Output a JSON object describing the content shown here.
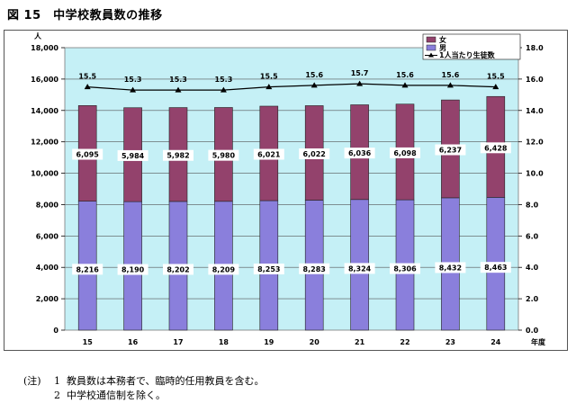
{
  "figure_title": "図 15　中学校教員数の推移",
  "notes": {
    "lead": "(注)",
    "items": [
      {
        "num": "1",
        "text": "教員数は本務者で、臨時的任用教員を含む。"
      },
      {
        "num": "2",
        "text": "中学校通信制を除く。"
      }
    ]
  },
  "colors": {
    "plot_bg": "#c5f0f6",
    "male": "#8a7fdc",
    "female": "#93426c",
    "line": "#000000"
  },
  "chart_data": {
    "type": "bar",
    "stacked": true,
    "categories": [
      "15",
      "16",
      "17",
      "18",
      "19",
      "20",
      "21",
      "22",
      "23",
      "24"
    ],
    "xlabel_right": "年度",
    "ylabel_left": "人",
    "ylim_left": [
      0,
      18000
    ],
    "yticks_left": [
      "0",
      "2,000",
      "4,000",
      "6,000",
      "8,000",
      "10,000",
      "12,000",
      "14,000",
      "16,000",
      "18,000"
    ],
    "ylim_right": [
      0,
      18
    ],
    "yticks_right": [
      "0.0",
      "2.0",
      "4.0",
      "6.0",
      "8.0",
      "10.0",
      "12.0",
      "14.0",
      "16.0",
      "18.0"
    ],
    "series": [
      {
        "name": "男",
        "values": [
          8216,
          8190,
          8202,
          8209,
          8253,
          8283,
          8324,
          8306,
          8432,
          8463
        ],
        "labels": [
          "8,216",
          "8,190",
          "8,202",
          "8,209",
          "8,253",
          "8,283",
          "8,324",
          "8,306",
          "8,432",
          "8,463"
        ]
      },
      {
        "name": "女",
        "values": [
          6095,
          5984,
          5982,
          5980,
          6021,
          6022,
          6036,
          6098,
          6237,
          6428
        ],
        "labels": [
          "6,095",
          "5,984",
          "5,982",
          "5,980",
          "6,021",
          "6,022",
          "6,036",
          "6,098",
          "6,237",
          "6,428"
        ]
      },
      {
        "name": "1人当たり生徒数",
        "type": "line",
        "axis": "right",
        "values": [
          15.5,
          15.3,
          15.3,
          15.3,
          15.5,
          15.6,
          15.7,
          15.6,
          15.6,
          15.5
        ],
        "labels": [
          "15.5",
          "15.3",
          "15.3",
          "15.3",
          "15.5",
          "15.6",
          "15.7",
          "15.6",
          "15.6",
          "15.5"
        ]
      }
    ],
    "legend": [
      "女",
      "男",
      "1人当たり生徒数"
    ],
    "legend_position": "top-right",
    "grid": true
  }
}
